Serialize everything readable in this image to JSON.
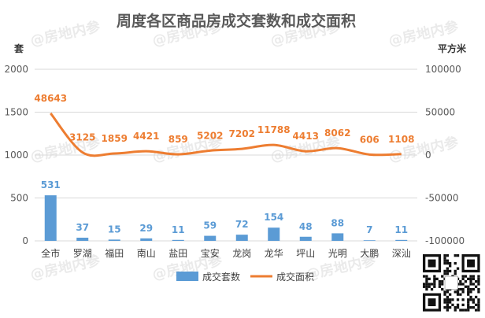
{
  "watermark": "@房地内参",
  "colors": {
    "bar": "#5b9bd5",
    "line": "#ed7d31",
    "grid": "#d9d9d9",
    "text": "#595959"
  },
  "chart_data": {
    "type": "bar",
    "title": "周度各区商品房成交套数和成交面积",
    "categories": [
      "全市",
      "罗湖",
      "福田",
      "南山",
      "盐田",
      "宝安",
      "龙岗",
      "龙华",
      "坪山",
      "光明",
      "大鹏",
      "深汕"
    ],
    "series": [
      {
        "name": "成交套数",
        "type": "bar",
        "axis": "left",
        "values": [
          531,
          37,
          15,
          29,
          11,
          59,
          72,
          154,
          48,
          88,
          7,
          11
        ]
      },
      {
        "name": "成交面积",
        "type": "line",
        "axis": "right",
        "values": [
          48643,
          3125,
          1859,
          4421,
          859,
          5202,
          7202,
          11788,
          4413,
          8062,
          606,
          1108
        ]
      }
    ],
    "y_left": {
      "label": "套",
      "ylim": [
        0,
        2000
      ],
      "ticks": [
        0,
        500,
        1000,
        1500,
        2000
      ]
    },
    "y_right": {
      "label": "平方米",
      "ylim": [
        -100000,
        100000
      ],
      "ticks": [
        -100000,
        -50000,
        0,
        50000,
        100000
      ]
    },
    "grid": true,
    "legend_position": "bottom"
  }
}
